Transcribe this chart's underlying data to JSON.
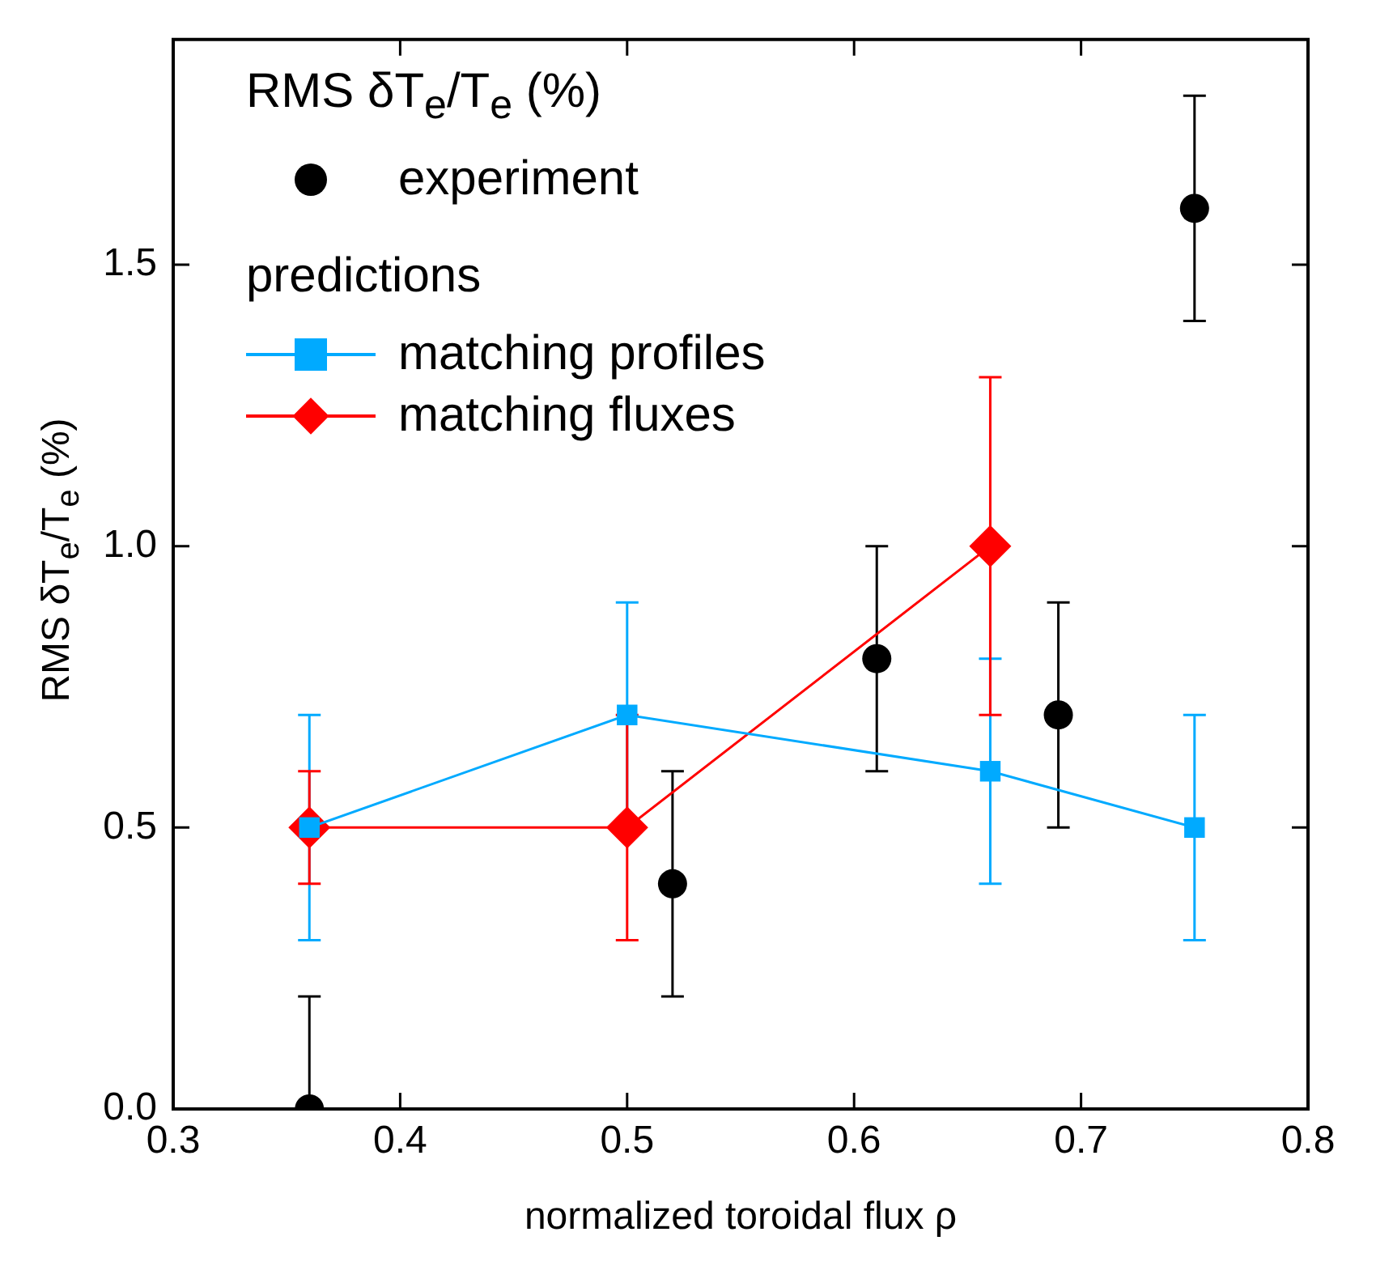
{
  "chart_data": {
    "type": "scatter",
    "xlabel": "normalized toroidal flux ρ",
    "ylabel": "RMS δT$_{e}$/T$_{e}$ (%)",
    "legend_title": "RMS δT$_{e}$/T$_{e}$ (%)",
    "annotations": [
      "predictions"
    ],
    "xlim": [
      0.3,
      0.8
    ],
    "xticks": [
      0.3,
      0.4,
      0.5,
      0.6,
      0.7,
      0.8
    ],
    "ylim": [
      0,
      1.9
    ],
    "yticks": [
      {
        "value": 0,
        "label": "0.0"
      },
      {
        "value": 0.5,
        "label": "0.5"
      },
      {
        "value": 1,
        "label": "1.0"
      },
      {
        "value": 1.5,
        "label": "1.5"
      }
    ],
    "grid": false,
    "legend": "top left",
    "series": [
      {
        "name": "experiment",
        "type": "scatter",
        "marker": "circle",
        "color": "#000000",
        "x": [
          0.36,
          0.52,
          0.61,
          0.69,
          0.75
        ],
        "values": [
          0,
          0.4,
          0.8,
          0.7,
          1.6
        ],
        "errors": [
          0.2,
          0.2,
          0.2,
          0.2,
          0.2
        ]
      },
      {
        "name": "matching profiles",
        "type": "line",
        "marker": "square",
        "color": "#00aaff",
        "x": [
          0.36,
          0.5,
          0.66,
          0.75
        ],
        "values": [
          0.5,
          0.7,
          0.6,
          0.5
        ],
        "errors": [
          0.2,
          0.2,
          0.2,
          0.2
        ]
      },
      {
        "name": "matching fluxes",
        "type": "line",
        "marker": "diamond",
        "color": "#ff0000",
        "x": [
          0.36,
          0.5,
          0.66
        ],
        "values": [
          0.5,
          0.5,
          1.0
        ],
        "errors": [
          0.1,
          0.2,
          0.3
        ]
      }
    ]
  }
}
